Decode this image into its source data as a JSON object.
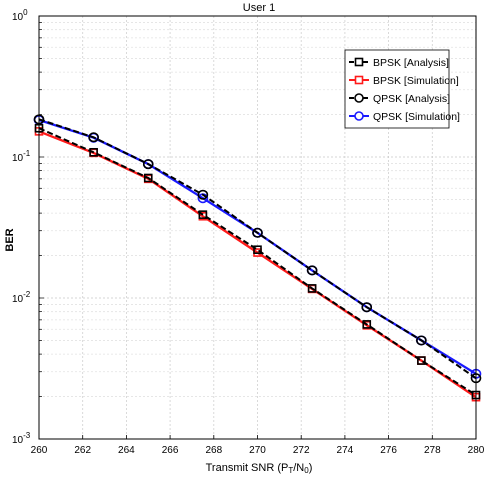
{
  "chart_data": {
    "type": "line",
    "title": "User 1",
    "xlabel": "Transmit SNR (P",
    "xlabel_sub1": "T",
    "xlabel_mid": "/N",
    "xlabel_sub2": "0",
    "xlabel_end": ")",
    "ylabel": "BER",
    "xlim": [
      260,
      280
    ],
    "ylim": [
      0.001,
      1
    ],
    "yscale": "log",
    "grid": true,
    "legend_position": "top-right",
    "x_ticks": [
      "260",
      "262",
      "264",
      "266",
      "268",
      "270",
      "272",
      "274",
      "276",
      "278",
      "280"
    ],
    "y_ticks": [
      {
        "base": "10",
        "exp": "0",
        "value": 1
      },
      {
        "base": "10",
        "exp": "-1",
        "value": 0.1
      },
      {
        "base": "10",
        "exp": "-2",
        "value": 0.01
      },
      {
        "base": "10",
        "exp": "-3",
        "value": 0.001
      }
    ],
    "series": [
      {
        "name": "BPSK [Analysis]",
        "color": "#000000",
        "dash": true,
        "marker": "square",
        "x": [
          260,
          262.5,
          265,
          267.5,
          270,
          272.5,
          275,
          277.5,
          280
        ],
        "y": [
          0.16,
          0.108,
          0.071,
          0.039,
          0.022,
          0.0117,
          0.0065,
          0.0036,
          0.00205
        ]
      },
      {
        "name": "BPSK [Simulation]",
        "color": "#ff1a1a",
        "dash": false,
        "marker": "square",
        "x": [
          260,
          262.5,
          265,
          267.5,
          270,
          272.5,
          275,
          277.5,
          280
        ],
        "y": [
          0.152,
          0.107,
          0.07,
          0.038,
          0.021,
          0.0116,
          0.0064,
          0.0036,
          0.00198
        ]
      },
      {
        "name": "QPSK [Analysis]",
        "color": "#000000",
        "dash": true,
        "marker": "circle",
        "x": [
          260,
          262.5,
          265,
          267.5,
          270,
          272.5,
          275,
          277.5,
          280
        ],
        "y": [
          0.185,
          0.138,
          0.089,
          0.054,
          0.029,
          0.0157,
          0.0086,
          0.005,
          0.0027
        ]
      },
      {
        "name": "QPSK [Simulation]",
        "color": "#1a1aff",
        "dash": false,
        "marker": "circle",
        "x": [
          260,
          262.5,
          265,
          267.5,
          270,
          272.5,
          275,
          277.5,
          280
        ],
        "y": [
          0.183,
          0.137,
          0.089,
          0.051,
          0.029,
          0.0157,
          0.0086,
          0.005,
          0.0029
        ]
      }
    ]
  }
}
